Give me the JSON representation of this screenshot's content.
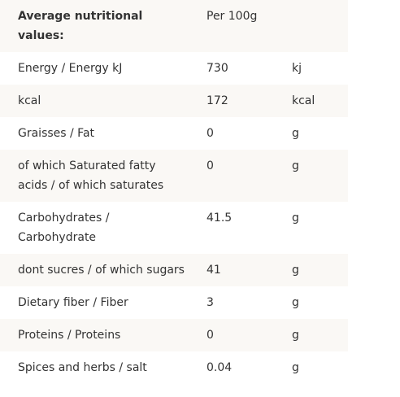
{
  "table": {
    "header": [
      "Average nutritional values:",
      "Per 100g"
    ],
    "rows": [
      [
        "Energy / Energy kJ",
        "730",
        "kj"
      ],
      [
        "kcal",
        "172",
        "kcal"
      ],
      [
        "Graisses / Fat",
        "0",
        "g"
      ],
      [
        "of which Saturated fatty acids / of which saturates",
        "0",
        "g"
      ],
      [
        "Carbohydrates / Carbohydrate",
        "41.5",
        "g"
      ],
      [
        "dont sucres / of which sugars",
        "41",
        "g"
      ],
      [
        "Dietary fiber / Fiber",
        "3",
        "g"
      ],
      [
        "Proteins / Proteins",
        "0",
        "g"
      ],
      [
        "Spices and herbs / salt",
        "0.04",
        "g"
      ]
    ]
  }
}
